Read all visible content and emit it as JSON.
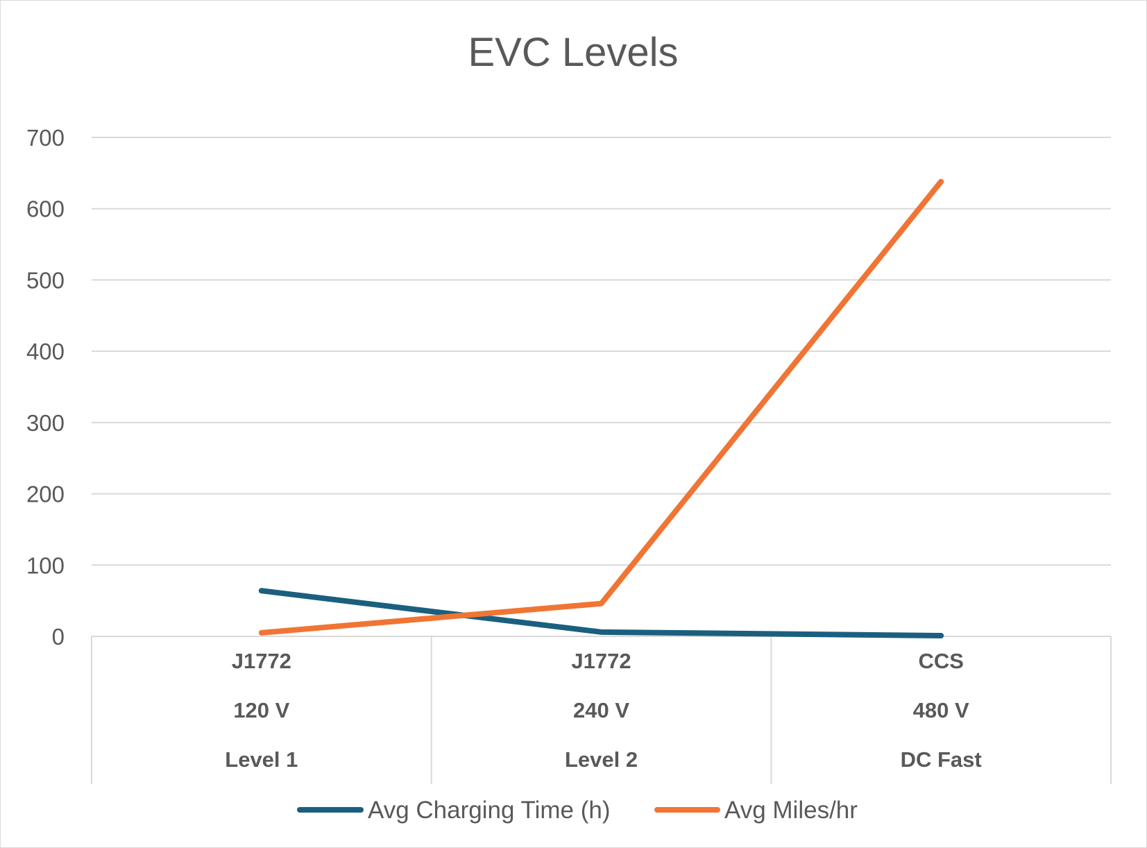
{
  "chart_data": {
    "type": "line",
    "title": "EVC Levels",
    "xlabel": "",
    "ylabel": "",
    "ylim": [
      0,
      700
    ],
    "yticks": [
      "0",
      "100",
      "200",
      "300",
      "400",
      "500",
      "600",
      "700"
    ],
    "grid": true,
    "legend_position": "bottom",
    "categories": [
      [
        "J1772",
        "120 V",
        "Level 1"
      ],
      [
        "J1772",
        "240 V",
        "Level 2"
      ],
      [
        "CCS",
        "480 V",
        "DC Fast"
      ]
    ],
    "series": [
      {
        "name": "Avg Charging Time (h)",
        "color": "#1b5f7f",
        "values": [
          64,
          6,
          1
        ]
      },
      {
        "name": "Avg Miles/hr",
        "color": "#f07534",
        "values": [
          5,
          46,
          638
        ]
      }
    ]
  }
}
